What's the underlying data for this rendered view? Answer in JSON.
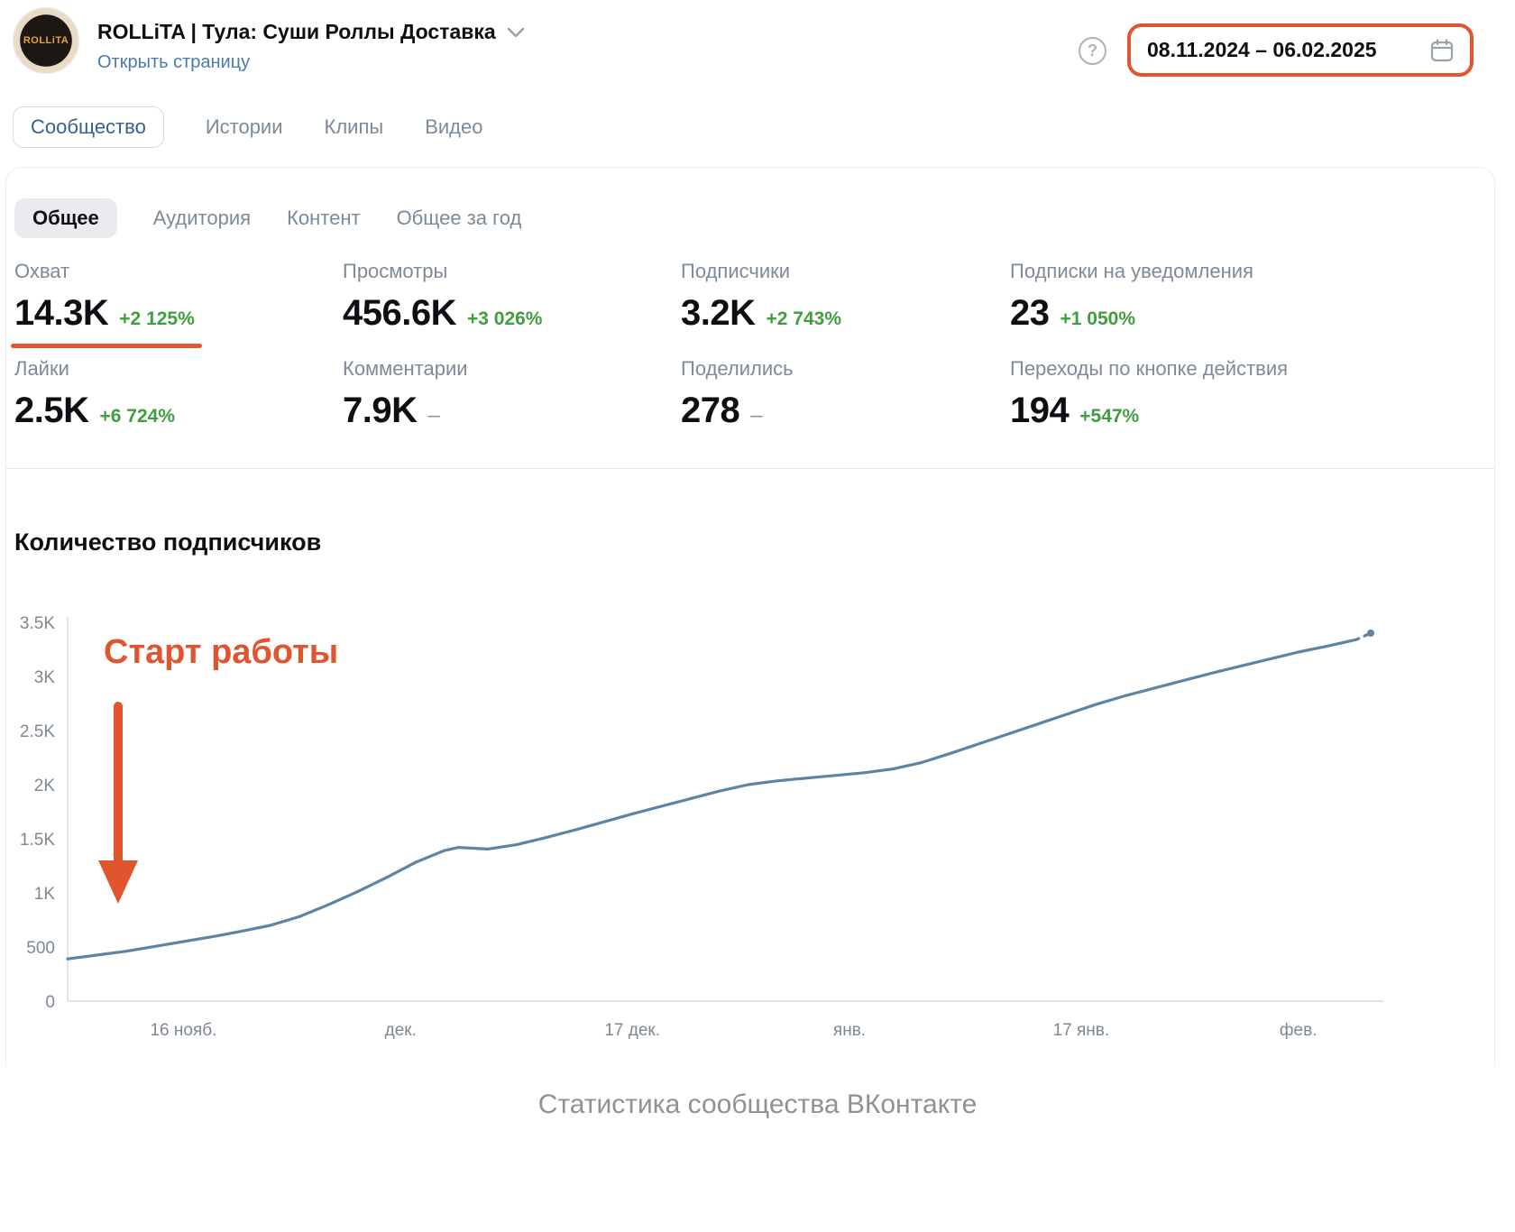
{
  "header": {
    "avatar_text": "ROLLiTA",
    "community_name": "ROLLiTA | Тула: Суши Роллы Доставка",
    "open_page_link": "Открыть страницу",
    "help_glyph": "?",
    "date_range": "08.11.2024 – 06.02.2025"
  },
  "tabs": [
    {
      "label": "Сообщество",
      "active": true
    },
    {
      "label": "Истории",
      "active": false
    },
    {
      "label": "Клипы",
      "active": false
    },
    {
      "label": "Видео",
      "active": false
    }
  ],
  "subtabs": [
    {
      "label": "Общее",
      "active": true
    },
    {
      "label": "Аудитория",
      "active": false
    },
    {
      "label": "Контент",
      "active": false
    },
    {
      "label": "Общее за год",
      "active": false
    }
  ],
  "stats": [
    {
      "label": "Охват",
      "value": "14.3K",
      "change": "+2 125%"
    },
    {
      "label": "Просмотры",
      "value": "456.6K",
      "change": "+3 026%"
    },
    {
      "label": "Подписчики",
      "value": "3.2K",
      "change": "+2 743%"
    },
    {
      "label": "Подписки на уведомления",
      "value": "23",
      "change": "+1 050%"
    },
    {
      "label": "Лайки",
      "value": "2.5K",
      "change": "+6 724%"
    },
    {
      "label": "Комментарии",
      "value": "7.9K",
      "change": "–"
    },
    {
      "label": "Поделились",
      "value": "278",
      "change": "–"
    },
    {
      "label": "Переходы по кнопке действия",
      "value": "194",
      "change": "+547%"
    }
  ],
  "chart": {
    "title": "Количество подписчиков",
    "annotation": "Старт работы"
  },
  "chart_data": {
    "type": "line",
    "title": "Количество подписчиков",
    "xlabel": "",
    "ylabel": "",
    "ylim": [
      0,
      3500
    ],
    "xlim_days": [
      0,
      90
    ],
    "grid": false,
    "y_ticks": [
      {
        "v": 0,
        "label": "0"
      },
      {
        "v": 500,
        "label": "500"
      },
      {
        "v": 1000,
        "label": "1K"
      },
      {
        "v": 1500,
        "label": "1.5K"
      },
      {
        "v": 2000,
        "label": "2K"
      },
      {
        "v": 2500,
        "label": "2.5K"
      },
      {
        "v": 3000,
        "label": "3K"
      },
      {
        "v": 3500,
        "label": "3.5K"
      }
    ],
    "x_ticks": [
      {
        "day": 8,
        "label": "16 нояб."
      },
      {
        "day": 23,
        "label": "дек."
      },
      {
        "day": 39,
        "label": "17 дек."
      },
      {
        "day": 54,
        "label": "янв."
      },
      {
        "day": 70,
        "label": "17 янв."
      },
      {
        "day": 85,
        "label": "фев."
      }
    ],
    "series": [
      {
        "name": "Подписчики",
        "color": "#5e84a2",
        "points": [
          [
            0,
            390
          ],
          [
            2,
            425
          ],
          [
            4,
            460
          ],
          [
            6,
            505
          ],
          [
            8,
            550
          ],
          [
            10,
            595
          ],
          [
            12,
            645
          ],
          [
            14,
            700
          ],
          [
            16,
            780
          ],
          [
            18,
            890
          ],
          [
            20,
            1010
          ],
          [
            22,
            1140
          ],
          [
            24,
            1280
          ],
          [
            26,
            1390
          ],
          [
            27,
            1420
          ],
          [
            29,
            1405
          ],
          [
            31,
            1445
          ],
          [
            33,
            1510
          ],
          [
            35,
            1580
          ],
          [
            37,
            1655
          ],
          [
            39,
            1730
          ],
          [
            41,
            1800
          ],
          [
            43,
            1870
          ],
          [
            45,
            1940
          ],
          [
            47,
            2000
          ],
          [
            49,
            2035
          ],
          [
            51,
            2060
          ],
          [
            53,
            2085
          ],
          [
            55,
            2110
          ],
          [
            57,
            2145
          ],
          [
            59,
            2205
          ],
          [
            61,
            2290
          ],
          [
            63,
            2380
          ],
          [
            65,
            2470
          ],
          [
            67,
            2560
          ],
          [
            69,
            2650
          ],
          [
            71,
            2740
          ],
          [
            73,
            2820
          ],
          [
            75,
            2890
          ],
          [
            77,
            2960
          ],
          [
            79,
            3030
          ],
          [
            81,
            3095
          ],
          [
            83,
            3160
          ],
          [
            85,
            3225
          ],
          [
            87,
            3280
          ],
          [
            88,
            3310
          ],
          [
            89,
            3340
          ],
          [
            90,
            3400
          ]
        ]
      }
    ]
  },
  "caption": "Статистика сообщества ВКонтакте",
  "colors": {
    "orange": "#e0552e",
    "green": "#3f9e3f",
    "line": "#5e84a2",
    "link_blue": "#4a7cab"
  }
}
